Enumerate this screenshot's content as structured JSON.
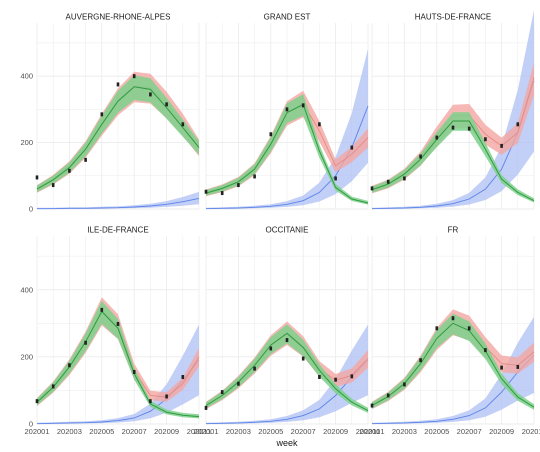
{
  "chart_data": {
    "type": "line",
    "layout": "facet-grid 2 rows x 3 columns, shared axes",
    "xlabel": "week",
    "ylabel": "",
    "x_ticks": [
      "202001",
      "202003",
      "202005",
      "202007",
      "202009",
      "202011"
    ],
    "x": [
      1,
      2,
      3,
      4,
      5,
      6,
      7,
      8,
      9,
      10,
      11
    ],
    "ylim": [
      0,
      560
    ],
    "y_ticks": [
      0,
      200,
      400
    ],
    "grid": true,
    "legend": "none",
    "colors": {
      "green_band": "#7ed08c",
      "green_line": "#2f9a3f",
      "red_band": "#f4a6a2",
      "red_line": "#e58b86",
      "blue_band": "#aebff3",
      "blue_line": "#5b83ea",
      "observed_point": "#222222"
    },
    "panels": [
      {
        "title": "AUVERGNE-RHONE-ALPES",
        "observed": [
          95,
          72,
          115,
          148,
          285,
          375,
          400,
          345,
          315,
          255,
          null
        ],
        "green_line": [
          60,
          88,
          125,
          180,
          255,
          325,
          368,
          360,
          305,
          245,
          185
        ],
        "red_line": [
          60,
          88,
          125,
          180,
          255,
          325,
          370,
          365,
          315,
          255,
          185
        ],
        "blue_line": [
          1,
          1,
          2,
          2,
          3,
          4,
          6,
          9,
          14,
          22,
          32
        ]
      },
      {
        "title": "GRAND EST",
        "observed": [
          52,
          48,
          72,
          98,
          225,
          300,
          312,
          255,
          92,
          185,
          null
        ],
        "green_line": [
          48,
          62,
          82,
          120,
          195,
          290,
          315,
          175,
          65,
          30,
          18
        ],
        "red_line": [
          48,
          62,
          82,
          120,
          195,
          290,
          318,
          235,
          130,
          165,
          215
        ],
        "blue_line": [
          1,
          2,
          3,
          5,
          8,
          14,
          25,
          50,
          100,
          185,
          310
        ]
      },
      {
        "title": "HAUTS-DE-FRANCE",
        "observed": [
          62,
          82,
          92,
          158,
          215,
          245,
          242,
          210,
          190,
          255,
          null
        ],
        "green_line": [
          58,
          75,
          105,
          150,
          210,
          265,
          265,
          180,
          90,
          50,
          25
        ],
        "red_line": [
          58,
          75,
          105,
          152,
          220,
          280,
          282,
          225,
          190,
          230,
          395
        ],
        "blue_line": [
          1,
          2,
          3,
          5,
          9,
          16,
          30,
          60,
          120,
          230,
          385
        ]
      },
      {
        "title": "ILE-DE-FRANCE",
        "observed": [
          68,
          112,
          175,
          242,
          340,
          298,
          155,
          68,
          82,
          140,
          null
        ],
        "green_line": [
          65,
          110,
          170,
          245,
          335,
          285,
          150,
          60,
          35,
          26,
          22
        ],
        "red_line": [
          65,
          110,
          170,
          245,
          338,
          292,
          158,
          85,
          80,
          120,
          200
        ],
        "blue_line": [
          1,
          2,
          3,
          4,
          6,
          10,
          18,
          38,
          75,
          130,
          190
        ]
      },
      {
        "title": "OCCITANIE",
        "observed": [
          48,
          95,
          120,
          165,
          225,
          250,
          195,
          140,
          132,
          142,
          null
        ],
        "green_line": [
          55,
          85,
          125,
          175,
          235,
          270,
          228,
          160,
          105,
          65,
          40
        ],
        "red_line": [
          55,
          85,
          125,
          175,
          235,
          272,
          232,
          165,
          130,
          145,
          195
        ],
        "blue_line": [
          1,
          2,
          3,
          5,
          8,
          14,
          25,
          45,
          85,
          140,
          190
        ]
      },
      {
        "title": "FR",
        "observed": [
          55,
          85,
          118,
          190,
          285,
          315,
          285,
          220,
          168,
          170,
          null
        ],
        "green_line": [
          55,
          82,
          120,
          180,
          255,
          300,
          278,
          218,
          135,
          80,
          50
        ],
        "red_line": [
          55,
          82,
          120,
          180,
          255,
          305,
          288,
          230,
          180,
          175,
          215
        ],
        "blue_line": [
          1,
          2,
          3,
          5,
          8,
          14,
          25,
          48,
          95,
          155,
          205
        ]
      }
    ]
  }
}
